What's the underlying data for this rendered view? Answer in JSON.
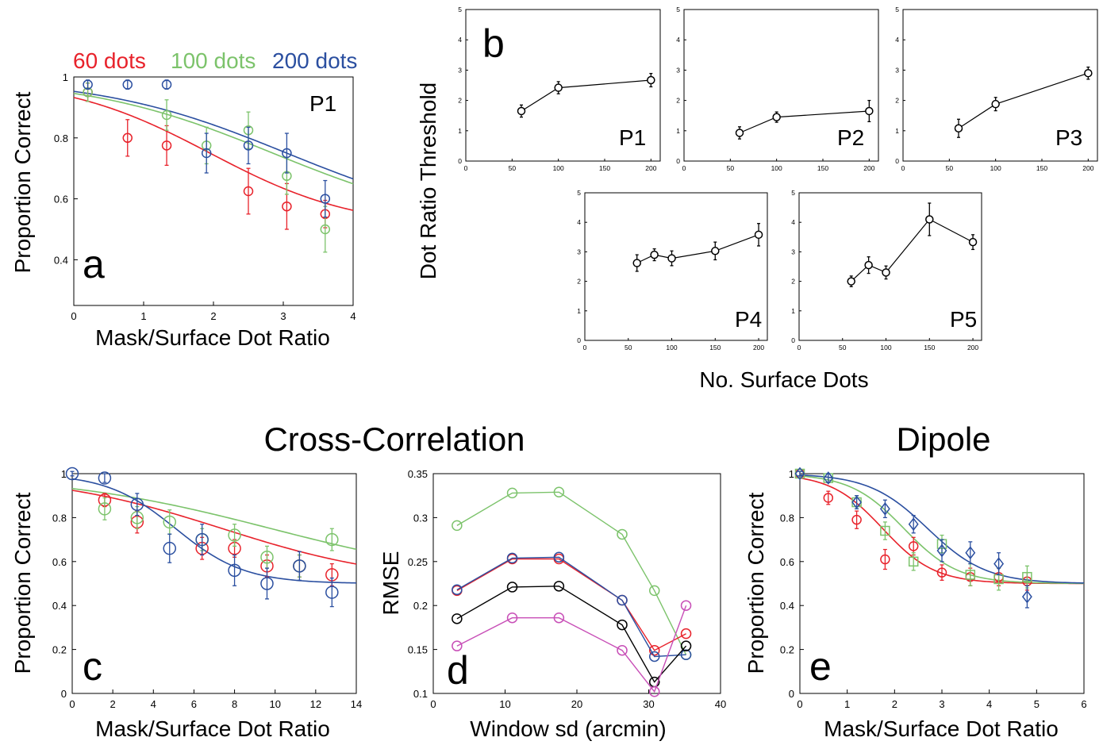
{
  "section_titles": {
    "cross_correlation": "Cross-Correlation",
    "dipole": "Dipole"
  },
  "chart_data": [
    {
      "id": "a",
      "type": "line",
      "letter": "a",
      "tag": "P1",
      "xlabel": "Mask/Surface Dot Ratio",
      "ylabel": "Proportion Correct",
      "xlim": [
        0,
        4
      ],
      "ylim": [
        0.25,
        1.0
      ],
      "xticks": [
        0,
        1,
        2,
        3,
        4
      ],
      "yticks": [
        0.4,
        0.6,
        0.8,
        1
      ],
      "legend": [
        {
          "label": "60 dots",
          "color": "#e8222b"
        },
        {
          "label": "100 dots",
          "color": "#7cc36b"
        },
        {
          "label": "200 dots",
          "color": "#2b4fa0"
        }
      ],
      "series": [
        {
          "color": "#e8222b",
          "marker": "circle",
          "points": [
            [
              0.2,
              0.95,
              0.03
            ],
            [
              0.77,
              0.8,
              0.06
            ],
            [
              1.33,
              0.775,
              0.065
            ],
            [
              2.5,
              0.625,
              0.075
            ],
            [
              3.05,
              0.575,
              0.075
            ],
            [
              3.6,
              0.55,
              0.045
            ]
          ],
          "fit": {
            "kind": "logistic",
            "base": 0.5,
            "amp": 0.5,
            "x50": 1.95,
            "slope": 1.05
          }
        },
        {
          "color": "#7cc36b",
          "marker": "circle",
          "points": [
            [
              0.2,
              0.95,
              0.03
            ],
            [
              1.33,
              0.875,
              0.05
            ],
            [
              1.9,
              0.775,
              0.06
            ],
            [
              2.5,
              0.825,
              0.06
            ],
            [
              3.05,
              0.675,
              0.06
            ],
            [
              3.6,
              0.5,
              0.075
            ]
          ],
          "fit": {
            "kind": "logistic",
            "base": 0.5,
            "amp": 0.5,
            "x50": 2.85,
            "slope": 1.35
          }
        },
        {
          "color": "#2b4fa0",
          "marker": "circle",
          "points": [
            [
              0.2,
              0.975,
              0.015
            ],
            [
              0.77,
              0.975,
              0.015
            ],
            [
              1.33,
              0.975,
              0.015
            ],
            [
              1.9,
              0.75,
              0.065
            ],
            [
              2.5,
              0.775,
              0.06
            ],
            [
              3.05,
              0.75,
              0.065
            ],
            [
              3.6,
              0.6,
              0.06
            ]
          ],
          "fit": {
            "kind": "logistic",
            "base": 0.5,
            "amp": 0.5,
            "x50": 3.05,
            "slope": 1.35
          }
        }
      ]
    },
    {
      "id": "b",
      "letter": "b",
      "ylabel": "Dot Ratio Threshold",
      "xlabel": "No. Surface Dots",
      "subplots": [
        {
          "type": "line",
          "tag": "P1",
          "xlim": [
            0,
            210
          ],
          "ylim": [
            0,
            5
          ],
          "points": [
            [
              60,
              1.65,
              0.2
            ],
            [
              100,
              2.42,
              0.2
            ],
            [
              200,
              2.67,
              0.22
            ]
          ]
        },
        {
          "type": "line",
          "tag": "P2",
          "xlim": [
            0,
            210
          ],
          "ylim": [
            0,
            5
          ],
          "points": [
            [
              60,
              0.93,
              0.2
            ],
            [
              100,
              1.45,
              0.17
            ],
            [
              200,
              1.65,
              0.35
            ]
          ]
        },
        {
          "type": "line",
          "tag": "P3",
          "xlim": [
            0,
            210
          ],
          "ylim": [
            0,
            5
          ],
          "points": [
            [
              60,
              1.08,
              0.3
            ],
            [
              100,
              1.88,
              0.22
            ],
            [
              200,
              2.9,
              0.2
            ]
          ]
        },
        {
          "type": "line",
          "tag": "P4",
          "xlim": [
            0,
            210
          ],
          "ylim": [
            0,
            5
          ],
          "points": [
            [
              60,
              2.62,
              0.28
            ],
            [
              80,
              2.9,
              0.2
            ],
            [
              100,
              2.78,
              0.25
            ],
            [
              150,
              3.03,
              0.3
            ],
            [
              200,
              3.58,
              0.38
            ]
          ]
        },
        {
          "type": "line",
          "tag": "P5",
          "xlim": [
            0,
            210
          ],
          "ylim": [
            0,
            5
          ],
          "points": [
            [
              60,
              2.0,
              0.18
            ],
            [
              80,
              2.55,
              0.28
            ],
            [
              100,
              2.3,
              0.22
            ],
            [
              150,
              4.1,
              0.55
            ],
            [
              200,
              3.33,
              0.25
            ]
          ]
        }
      ],
      "xticks": [
        0,
        50,
        100,
        150,
        200
      ],
      "yticks": [
        0,
        1,
        2,
        3,
        4,
        5
      ]
    },
    {
      "id": "c",
      "type": "line",
      "letter": "c",
      "xlabel": "Mask/Surface Dot Ratio",
      "ylabel": "Proportion Correct",
      "xlim": [
        0,
        14
      ],
      "ylim": [
        0,
        1.0
      ],
      "xticks": [
        0,
        2,
        4,
        6,
        8,
        10,
        12,
        14
      ],
      "yticks": [
        0,
        0.2,
        0.4,
        0.6,
        0.8,
        1
      ],
      "series": [
        {
          "color": "#e8222b",
          "marker": "circle",
          "points": [
            [
              1.6,
              0.88,
              0.03
            ],
            [
              3.2,
              0.78,
              0.05
            ],
            [
              6.4,
              0.66,
              0.05
            ],
            [
              8.0,
              0.66,
              0.04
            ],
            [
              9.6,
              0.58,
              0.05
            ],
            [
              11.2,
              0.58,
              0.05
            ],
            [
              12.8,
              0.54,
              0.05
            ]
          ],
          "fit": {
            "kind": "logistic",
            "base": 0.5,
            "amp": 0.5,
            "x50": 7.4,
            "slope": 4.3
          }
        },
        {
          "color": "#7cc36b",
          "marker": "circle",
          "points": [
            [
              1.6,
              0.84,
              0.05
            ],
            [
              3.2,
              0.8,
              0.05
            ],
            [
              4.8,
              0.78,
              0.055
            ],
            [
              6.4,
              0.7,
              0.05
            ],
            [
              8.0,
              0.72,
              0.05
            ],
            [
              9.6,
              0.62,
              0.05
            ],
            [
              11.2,
              0.58,
              0.05
            ],
            [
              12.8,
              0.7,
              0.05
            ]
          ],
          "fit": {
            "kind": "logistic",
            "base": 0.5,
            "amp": 0.5,
            "x50": 9.8,
            "slope": 5.3
          }
        },
        {
          "color": "#2b4fa0",
          "marker": "circle",
          "points": [
            [
              0,
              1.0,
              0.01
            ],
            [
              1.6,
              0.98,
              0.02
            ],
            [
              3.2,
              0.86,
              0.05
            ],
            [
              4.8,
              0.66,
              0.065
            ],
            [
              6.4,
              0.7,
              0.07
            ],
            [
              8.0,
              0.56,
              0.07
            ],
            [
              9.6,
              0.5,
              0.07
            ],
            [
              11.2,
              0.58,
              0.065
            ],
            [
              12.8,
              0.46,
              0.065
            ]
          ],
          "fit": {
            "kind": "logistic",
            "base": 0.5,
            "amp": 0.5,
            "x50": 5.1,
            "slope": 1.7
          }
        }
      ]
    },
    {
      "id": "d",
      "type": "line",
      "letter": "d",
      "xlabel": "Window sd (arcmin)",
      "ylabel": "RMSE",
      "xlim": [
        0,
        40
      ],
      "ylim": [
        0.1,
        0.35
      ],
      "xticks": [
        0,
        10,
        20,
        30,
        40
      ],
      "yticks": [
        0.1,
        0.15,
        0.2,
        0.25,
        0.3,
        0.35
      ],
      "ytick_labels": [
        "0.1",
        "0.15",
        "0.2",
        "0.25",
        "0.3",
        "0.35"
      ],
      "x": [
        3.3,
        11,
        17.5,
        26.3,
        30.8,
        35.2
      ],
      "series": [
        {
          "color": "#7cc36b",
          "values": [
            0.291,
            0.328,
            0.329,
            0.281,
            0.217,
            0.144
          ]
        },
        {
          "color": "#e8222b",
          "values": [
            0.217,
            0.253,
            0.253,
            0.206,
            0.149,
            0.168
          ]
        },
        {
          "color": "#2b4fa0",
          "values": [
            0.218,
            0.254,
            0.255,
            0.206,
            0.142,
            0.144
          ]
        },
        {
          "color": "#000000",
          "values": [
            0.185,
            0.221,
            0.222,
            0.178,
            0.113,
            0.154
          ]
        },
        {
          "color": "#c84fb7",
          "values": [
            0.154,
            0.186,
            0.186,
            0.149,
            0.102,
            0.2
          ]
        }
      ]
    },
    {
      "id": "e",
      "type": "line",
      "letter": "e",
      "xlabel": "Mask/Surface Dot Ratio",
      "ylabel": "Proportion Correct",
      "xlim": [
        0,
        6
      ],
      "ylim": [
        0,
        1.0
      ],
      "xticks": [
        0,
        1,
        2,
        3,
        4,
        5,
        6
      ],
      "yticks": [
        0,
        0.2,
        0.4,
        0.6,
        0.8,
        1
      ],
      "series": [
        {
          "color": "#e8222b",
          "marker": "circle",
          "points": [
            [
              0,
              1.0,
              0.01
            ],
            [
              0.6,
              0.89,
              0.03
            ],
            [
              1.2,
              0.79,
              0.04
            ],
            [
              1.8,
              0.61,
              0.045
            ],
            [
              2.4,
              0.67,
              0.04
            ],
            [
              3.0,
              0.55,
              0.035
            ],
            [
              3.6,
              0.53,
              0.04
            ],
            [
              4.2,
              0.53,
              0.04
            ],
            [
              4.8,
              0.51,
              0.04
            ]
          ],
          "fit": {
            "kind": "logistic",
            "base": 0.5,
            "amp": 0.5,
            "x50": 1.75,
            "slope": 0.55
          }
        },
        {
          "color": "#7cc36b",
          "marker": "square",
          "points": [
            [
              0,
              1.0,
              0.01
            ],
            [
              0.6,
              0.98,
              0.02
            ],
            [
              1.2,
              0.87,
              0.03
            ],
            [
              1.8,
              0.74,
              0.04
            ],
            [
              2.4,
              0.6,
              0.04
            ],
            [
              3.0,
              0.68,
              0.04
            ],
            [
              3.6,
              0.54,
              0.05
            ],
            [
              4.2,
              0.52,
              0.05
            ],
            [
              4.8,
              0.53,
              0.05
            ]
          ],
          "fit": {
            "kind": "logistic",
            "base": 0.5,
            "amp": 0.5,
            "x50": 2.2,
            "slope": 0.57
          }
        },
        {
          "color": "#2b4fa0",
          "marker": "diamond",
          "points": [
            [
              0,
              1.0,
              0.01
            ],
            [
              0.6,
              0.98,
              0.02
            ],
            [
              1.2,
              0.87,
              0.03
            ],
            [
              1.8,
              0.84,
              0.04
            ],
            [
              2.4,
              0.77,
              0.04
            ],
            [
              3.0,
              0.65,
              0.05
            ],
            [
              3.6,
              0.64,
              0.05
            ],
            [
              4.2,
              0.59,
              0.05
            ],
            [
              4.8,
              0.44,
              0.05
            ]
          ],
          "fit": {
            "kind": "logistic",
            "base": 0.5,
            "amp": 0.5,
            "x50": 2.7,
            "slope": 0.62
          }
        }
      ]
    }
  ]
}
